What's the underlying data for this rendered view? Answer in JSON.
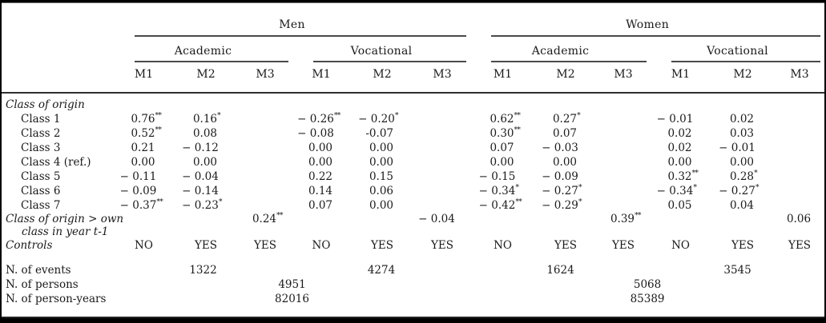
{
  "meta": {
    "colors": {
      "text": "#1a1a1a",
      "rule": "#4a4a4a",
      "frame": "#000000",
      "background": "#ffffff"
    }
  },
  "header": {
    "groups": [
      {
        "label": "Men",
        "subgroups": [
          {
            "label": "Academic"
          },
          {
            "label": "Vocational"
          }
        ]
      },
      {
        "label": "Women",
        "subgroups": [
          {
            "label": "Academic"
          },
          {
            "label": "Vocational"
          }
        ]
      }
    ],
    "model_labels": [
      "M1",
      "M2",
      "M3",
      "M1",
      "M2",
      "M3",
      "M1",
      "M2",
      "M3",
      "M1",
      "M2",
      "M3"
    ]
  },
  "rows": [
    {
      "type": "section",
      "label": "Class of origin"
    },
    {
      "type": "data",
      "label": "Class 1",
      "indent": true,
      "cells": [
        "0.76**",
        "0.16*",
        "",
        "− 0.26**",
        "− 0.20*",
        "",
        "0.62**",
        "0.27*",
        "",
        "− 0.01",
        "0.02",
        ""
      ]
    },
    {
      "type": "data",
      "label": "Class 2",
      "indent": true,
      "cells": [
        "0.52**",
        "0.08",
        "",
        "− 0.08",
        "-0.07",
        "",
        "0.30**",
        "0.07",
        "",
        "0.02",
        "0.03",
        ""
      ]
    },
    {
      "type": "data",
      "label": "Class 3",
      "indent": true,
      "cells": [
        "0.21",
        "− 0.12",
        "",
        "0.00",
        "0.00",
        "",
        "0.07",
        "− 0.03",
        "",
        "0.02",
        "− 0.01",
        ""
      ]
    },
    {
      "type": "data",
      "label": "Class 4 (ref.)",
      "indent": true,
      "cells": [
        "0.00",
        "0.00",
        "",
        "0.00",
        "0.00",
        "",
        "0.00",
        "0.00",
        "",
        "0.00",
        "0.00",
        ""
      ]
    },
    {
      "type": "data",
      "label": "Class 5",
      "indent": true,
      "cells": [
        "− 0.11",
        "− 0.04",
        "",
        "0.22",
        "0.15",
        "",
        "− 0.15",
        "− 0.09",
        "",
        "0.32**",
        "0.28*",
        ""
      ]
    },
    {
      "type": "data",
      "label": "Class 6",
      "indent": true,
      "cells": [
        "− 0.09",
        "− 0.14",
        "",
        "0.14",
        "0.06",
        "",
        "− 0.34*",
        "− 0.27*",
        "",
        "− 0.34*",
        "− 0.27*",
        ""
      ]
    },
    {
      "type": "data",
      "label": "Class 7",
      "indent": true,
      "cells": [
        "− 0.37**",
        "− 0.23*",
        "",
        "0.07",
        "0.00",
        "",
        "− 0.42**",
        "− 0.29*",
        "",
        "0.05",
        "0.04",
        ""
      ]
    },
    {
      "type": "data",
      "label": "Class of origin > own",
      "label2": "class in year t-1",
      "italic": true,
      "cells": [
        "",
        "",
        "0.24**",
        "",
        "",
        "− 0.04",
        "",
        "",
        "0.39**",
        "",
        "",
        "0.06"
      ]
    },
    {
      "type": "controls",
      "label": "Controls",
      "italic": true,
      "cells": [
        "NO",
        "YES",
        "YES",
        "NO",
        "YES",
        "YES",
        "NO",
        "YES",
        "YES",
        "NO",
        "YES",
        "YES"
      ]
    },
    {
      "type": "spacer"
    },
    {
      "type": "group3",
      "label": "N. of events",
      "cells": [
        "1322",
        "4274",
        "1624",
        "3545"
      ]
    },
    {
      "type": "group6",
      "label": "N. of persons",
      "cells": [
        "4951",
        "5068"
      ]
    },
    {
      "type": "group6",
      "label": "N. of person-years",
      "cells": [
        "82016",
        "85389"
      ]
    }
  ]
}
